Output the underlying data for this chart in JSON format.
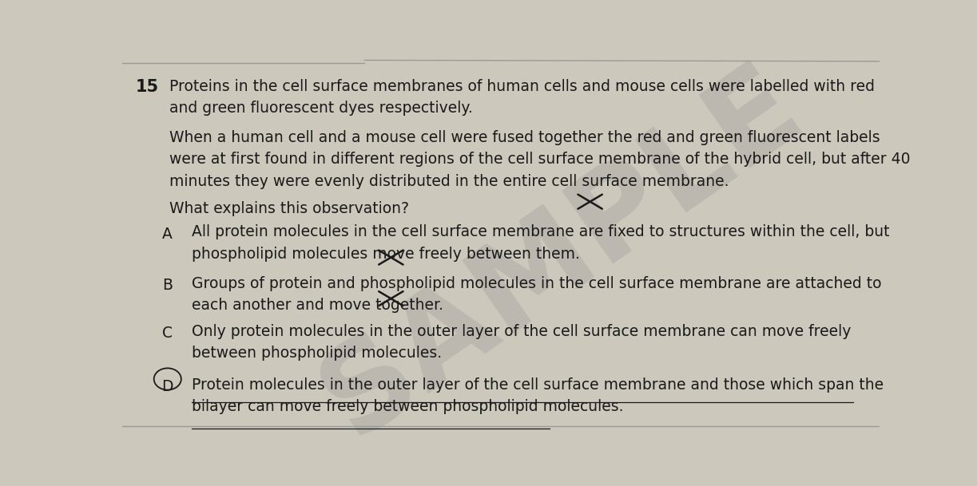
{
  "background_color": "#cdc8bc",
  "question_number": "15",
  "question_intro": "Proteins in the cell surface membranes of human cells and mouse cells were labelled with red\nand green fluorescent dyes respectively.",
  "question_body": "When a human cell and a mouse cell were fused together the red and green fluorescent labels\nwere at first found in different regions of the cell surface membrane of the hybrid cell, but after 40\nminutes they were evenly distributed in the entire cell surface membrane.",
  "question_stem": "What explains this observation?",
  "options": [
    {
      "letter": "A",
      "text": "All protein molecules in the cell surface membrane are fixed to structures within the cell, but\nphospholipid molecules move freely between them.",
      "cross_after_line": 1,
      "has_cross": true,
      "circled": false,
      "underlined": false
    },
    {
      "letter": "B",
      "text": "Groups of protein and phospholipid molecules in the cell surface membrane are attached to\neach another and move together.",
      "cross_after_line": 2,
      "has_cross": true,
      "circled": false,
      "underlined": false
    },
    {
      "letter": "C",
      "text": "Only protein molecules in the outer layer of the cell surface membrane can move freely\nbetween phospholipid molecules.",
      "cross_after_line": 2,
      "has_cross": true,
      "circled": false,
      "underlined": false
    },
    {
      "letter": "D",
      "text": "Protein molecules in the outer layer of the cell surface membrane and those which span the\nbilayer can move freely between phospholipid molecules.",
      "has_cross": false,
      "circled": true,
      "underlined": true
    }
  ],
  "text_color": "#1a1a1a",
  "font_size_main": 13.5,
  "font_size_number": 14,
  "watermark_text": "SAMPLE",
  "watermark_color": "#909090",
  "watermark_alpha": 0.28,
  "top_line_color": "#999999",
  "cross_positions": [
    [
      0.618,
      0.617
    ],
    [
      0.355,
      0.468
    ],
    [
      0.355,
      0.358
    ],
    null
  ],
  "cross_size": 0.016
}
